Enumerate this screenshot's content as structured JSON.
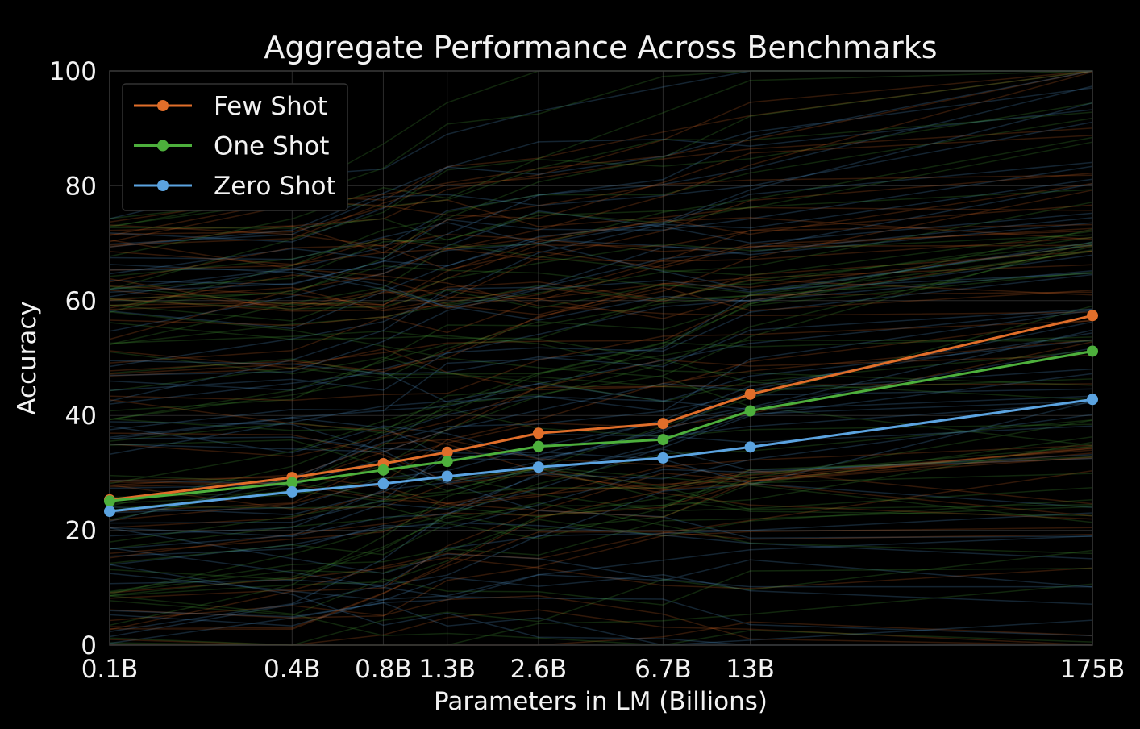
{
  "chart_data": {
    "type": "line",
    "title": "Aggregate Performance Across Benchmarks",
    "xlabel": "Parameters in LM (Billions)",
    "ylabel": "Accuracy",
    "x_scale": "log",
    "x_values": [
      0.1,
      0.4,
      0.8,
      1.3,
      2.6,
      6.7,
      13,
      175
    ],
    "x_tick_labels": [
      "0.1B",
      "0.4B",
      "0.8B",
      "1.3B",
      "2.6B",
      "6.7B",
      "13B",
      "175B"
    ],
    "ylim": [
      0,
      100
    ],
    "y_ticks": [
      0,
      20,
      40,
      60,
      80,
      100
    ],
    "grid": true,
    "legend": {
      "placement": "top-left",
      "entries": [
        "Few Shot",
        "One Shot",
        "Zero Shot"
      ]
    },
    "colors": {
      "few_shot": "#e06e2a",
      "one_shot": "#4daf3c",
      "zero_shot": "#5ba3e0",
      "background": "#000000",
      "grid": "#2a2a2a",
      "text": "#f2f2f2"
    },
    "series": [
      {
        "name": "Few Shot",
        "key": "few_shot",
        "values": [
          25.3,
          29.2,
          31.6,
          33.6,
          36.9,
          38.6,
          43.7,
          57.4
        ]
      },
      {
        "name": "One Shot",
        "key": "one_shot",
        "values": [
          25.1,
          28.3,
          30.5,
          32.0,
          34.6,
          35.8,
          40.8,
          51.2
        ]
      },
      {
        "name": "Zero Shot",
        "key": "zero_shot",
        "values": [
          23.3,
          26.7,
          28.1,
          29.4,
          31.0,
          32.6,
          34.5,
          42.8
        ]
      }
    ],
    "background_series_note": "faint individual benchmark curves"
  }
}
